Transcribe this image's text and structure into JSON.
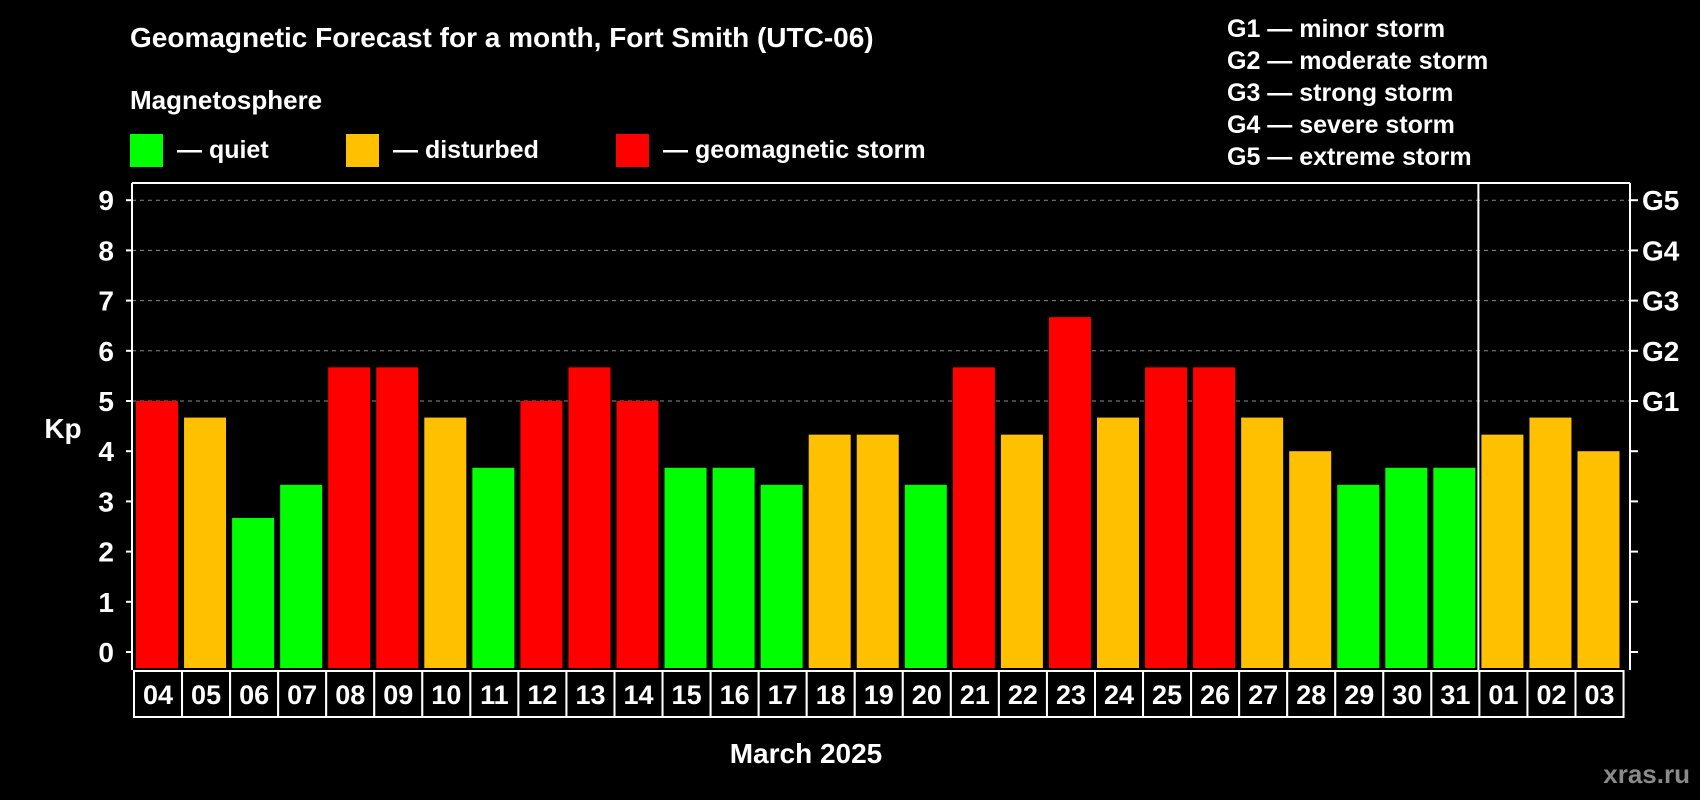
{
  "chart_data": {
    "type": "bar",
    "title": "Geomagnetic Forecast for a month, Fort Smith (UTC-06)",
    "legend_title": "Magnetosphere",
    "legend": [
      {
        "name": "— quiet",
        "color": "#00ff00"
      },
      {
        "name": "— disturbed",
        "color": "#ffc000"
      },
      {
        "name": "— geomagnetic storm",
        "color": "#ff0000"
      }
    ],
    "storm_scale": [
      "G1 — minor storm",
      "G2 — moderate storm",
      "G3 — strong storm",
      "G4 — severe storm",
      "G5 — extreme storm"
    ],
    "ylabel": "Kp",
    "xlabel": "March 2025",
    "ylim": [
      0,
      9
    ],
    "yticks": [
      "0",
      "1",
      "2",
      "3",
      "4",
      "5",
      "6",
      "7",
      "8",
      "9"
    ],
    "right_ticks": [
      {
        "value": 5,
        "label": "G1"
      },
      {
        "value": 6,
        "label": "G2"
      },
      {
        "value": 7,
        "label": "G3"
      },
      {
        "value": 8,
        "label": "G4"
      },
      {
        "value": 9,
        "label": "G5"
      }
    ],
    "grid": "horizontal dashed from Kp 5 to 9",
    "categories": [
      "04",
      "05",
      "06",
      "07",
      "08",
      "09",
      "10",
      "11",
      "12",
      "13",
      "14",
      "15",
      "16",
      "17",
      "18",
      "19",
      "20",
      "21",
      "22",
      "23",
      "24",
      "25",
      "26",
      "27",
      "28",
      "29",
      "30",
      "31",
      "01",
      "02",
      "03"
    ],
    "values": [
      5.0,
      4.67,
      2.67,
      3.33,
      5.67,
      5.67,
      4.67,
      3.67,
      5.0,
      5.67,
      5.0,
      3.67,
      3.67,
      3.33,
      4.33,
      4.33,
      3.33,
      5.67,
      4.33,
      6.67,
      4.67,
      5.67,
      5.67,
      4.67,
      4.0,
      3.33,
      3.67,
      3.67,
      4.33,
      4.67,
      4.0
    ],
    "levels": [
      "storm",
      "disturbed",
      "quiet",
      "quiet",
      "storm",
      "storm",
      "disturbed",
      "quiet",
      "storm",
      "storm",
      "storm",
      "quiet",
      "quiet",
      "quiet",
      "disturbed",
      "disturbed",
      "quiet",
      "storm",
      "disturbed",
      "storm",
      "disturbed",
      "storm",
      "storm",
      "disturbed",
      "disturbed",
      "quiet",
      "quiet",
      "quiet",
      "disturbed",
      "disturbed",
      "disturbed"
    ],
    "colors": {
      "quiet": "#00ff00",
      "disturbed": "#ffc000",
      "storm": "#ff0000"
    }
  },
  "watermark": "xras.ru"
}
